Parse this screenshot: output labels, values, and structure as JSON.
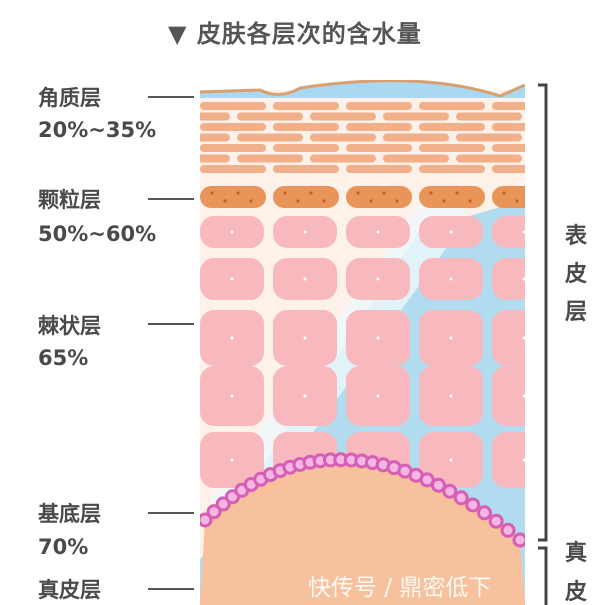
{
  "title": "▼ 皮肤各层次的含水量",
  "layers": [
    {
      "name": "角质层",
      "water": "20%~35%"
    },
    {
      "name": "颗粒层",
      "water": "50%~60%"
    },
    {
      "name": "棘状层",
      "water": "65%"
    },
    {
      "name": "基底层",
      "water": "70%"
    },
    {
      "name": "真皮层"
    }
  ],
  "right_labels": {
    "epidermis": "表皮层",
    "dermis_1": "真",
    "dermis_2": "皮"
  },
  "watermark": "快传号 / 鼎密低下",
  "colors": {
    "corneum": "#f2b08a",
    "granular": "#e9955a",
    "spinous": "#f7b8be",
    "water": "#a9d8f0",
    "basal": "#d65fb5",
    "dermis": "#f6c19c"
  }
}
